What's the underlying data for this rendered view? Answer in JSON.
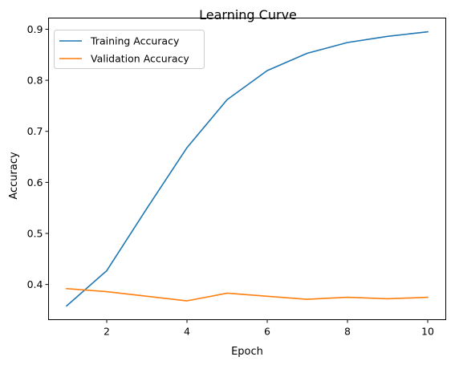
{
  "chart_data": {
    "type": "line",
    "title": "Learning Curve",
    "xlabel": "Epoch",
    "ylabel": "Accuracy",
    "x": [
      1,
      2,
      3,
      4,
      5,
      6,
      7,
      8,
      9,
      10
    ],
    "xlim": [
      0.55,
      10.45
    ],
    "ylim": [
      0.3311,
      0.9219
    ],
    "xticks": [
      2,
      4,
      6,
      8,
      10
    ],
    "yticks": [
      0.4,
      0.5,
      0.6,
      0.7,
      0.8,
      0.9
    ],
    "xtick_labels": [
      "2",
      "4",
      "6",
      "8",
      "10"
    ],
    "ytick_labels": [
      "0.4",
      "0.5",
      "0.6",
      "0.7",
      "0.8",
      "0.9"
    ],
    "grid": false,
    "legend_position": "upper-left",
    "series": [
      {
        "name": "Training Accuracy",
        "color": "#1f77b4",
        "values": [
          0.358,
          0.427,
          0.549,
          0.668,
          0.762,
          0.819,
          0.853,
          0.874,
          0.886,
          0.895
        ]
      },
      {
        "name": "Validation Accuracy",
        "color": "#ff7f0e",
        "values": [
          0.392,
          0.386,
          0.377,
          0.368,
          0.383,
          0.377,
          0.371,
          0.375,
          0.372,
          0.375
        ]
      }
    ]
  }
}
